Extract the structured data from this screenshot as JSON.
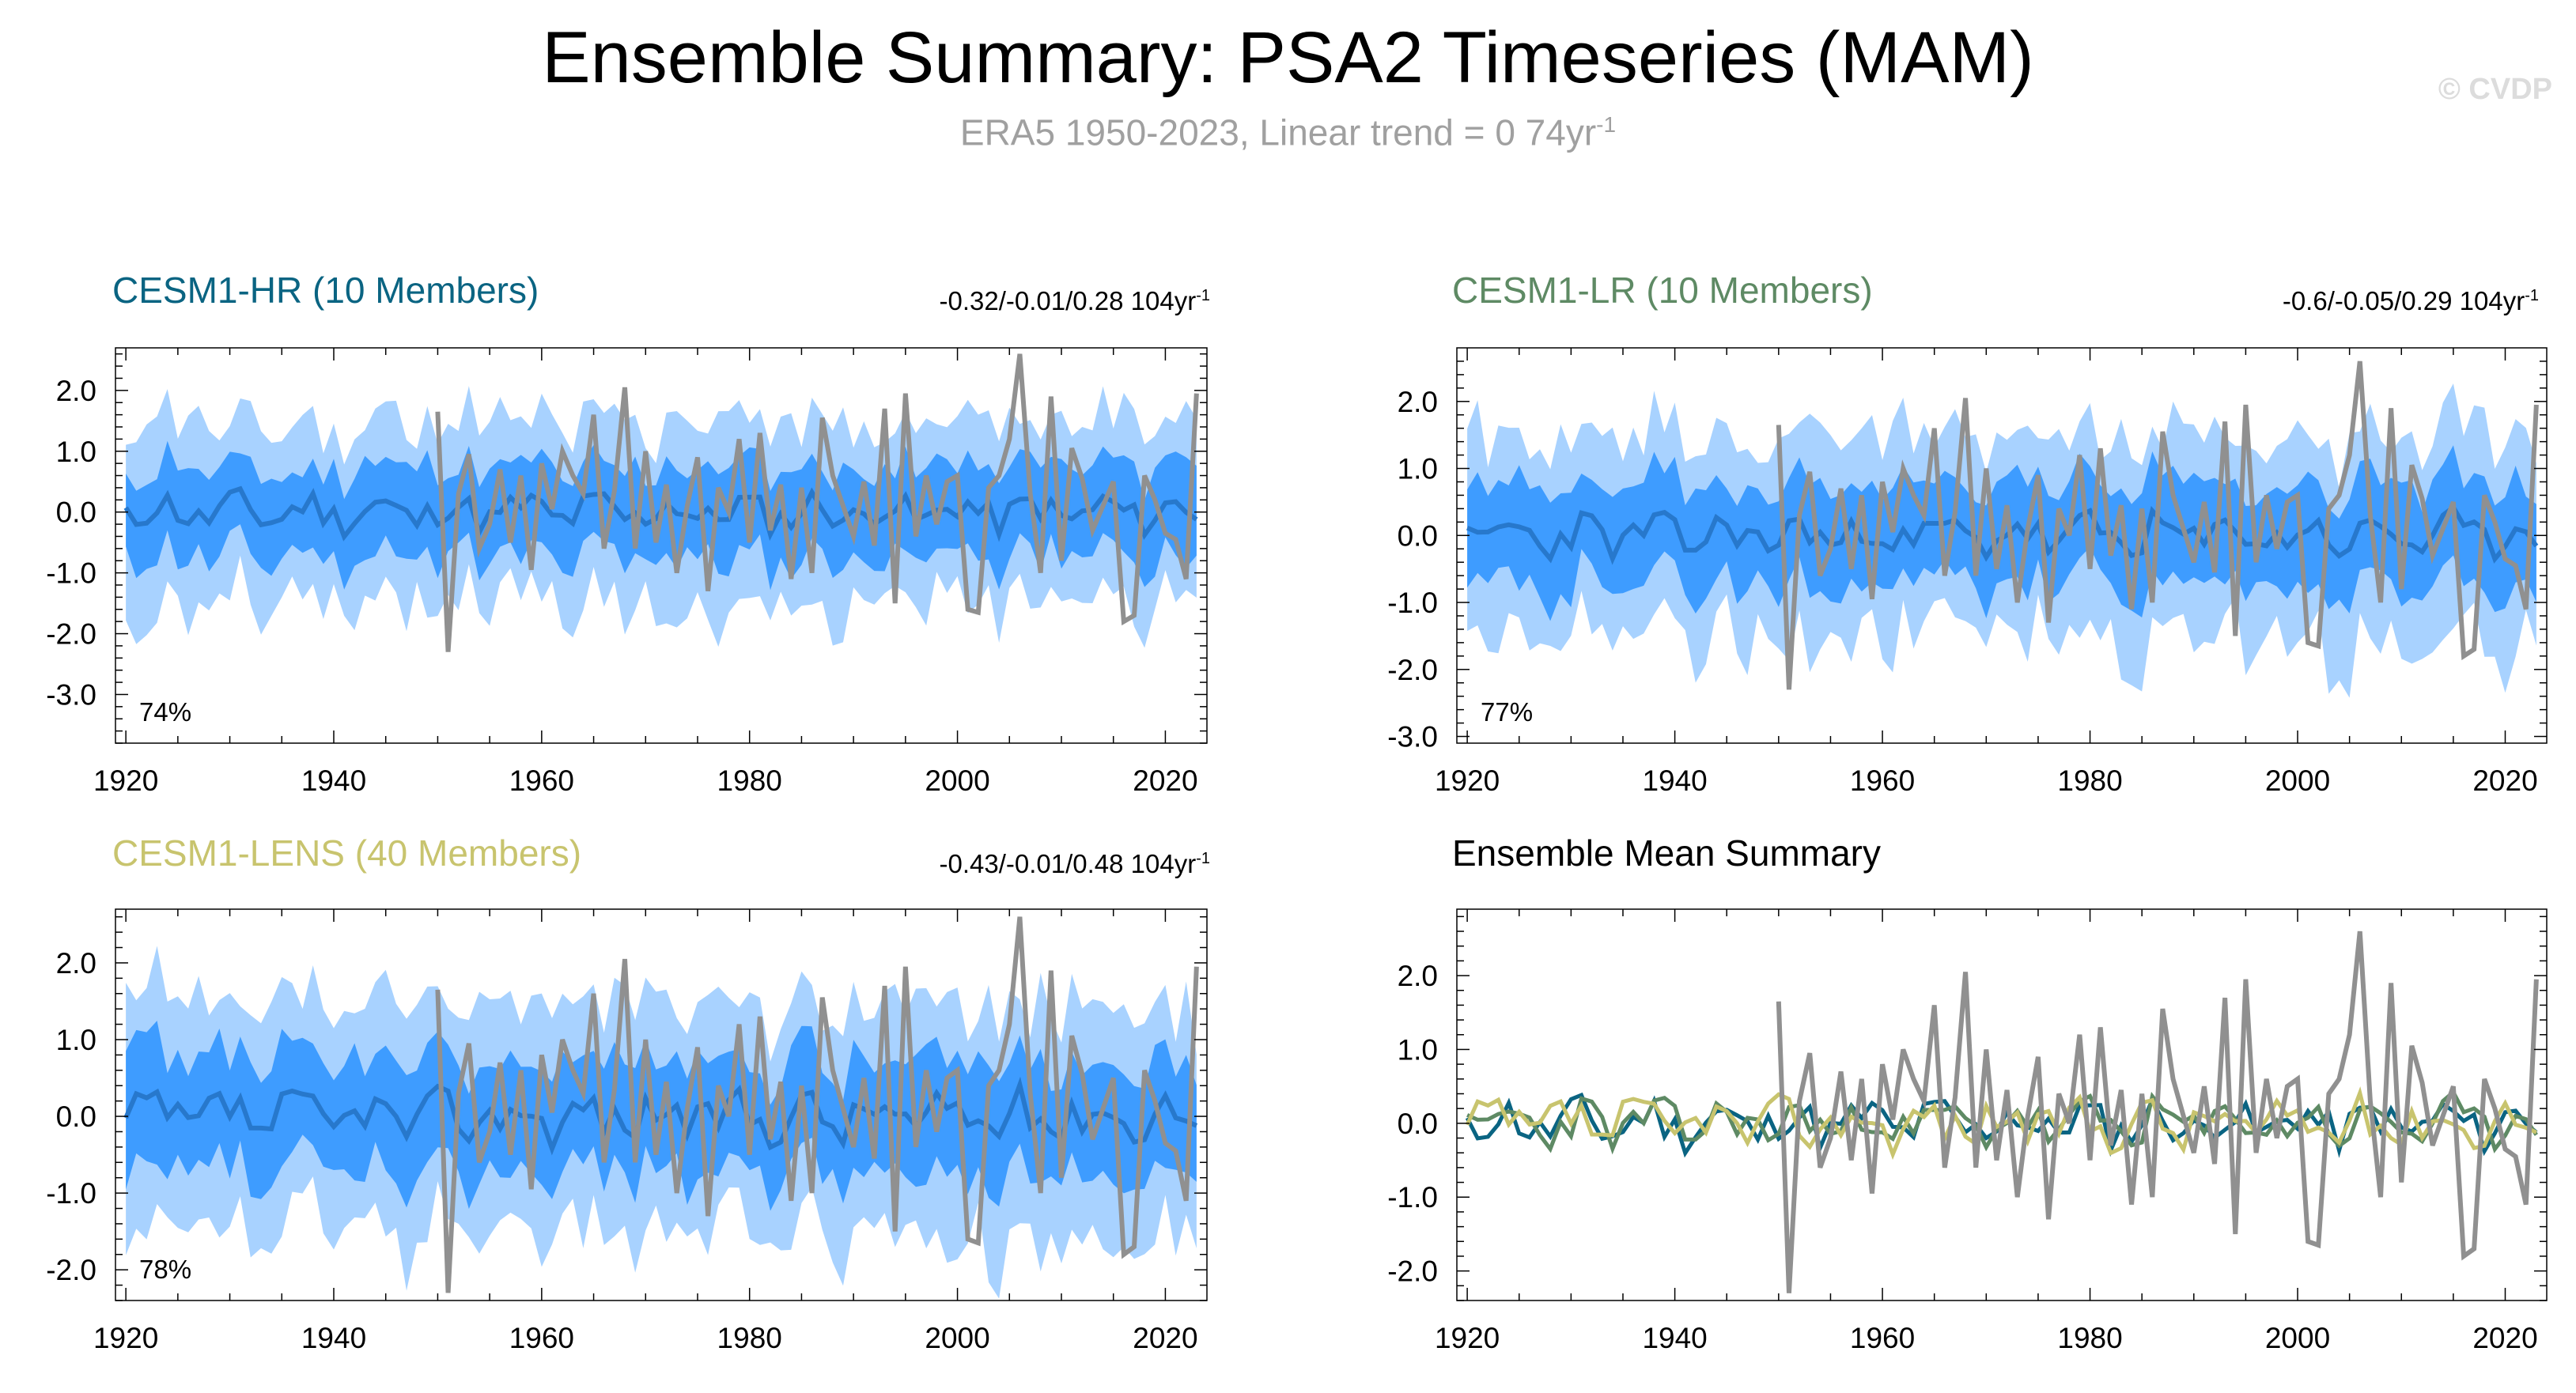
{
  "header": {
    "title": "Ensemble Summary: PSA2 Timeseries (MAM)",
    "subtitle": "ERA5 1950-2023, Linear trend = 0 74yr",
    "subtitle_sup": "-1",
    "watermark": "© CVDP"
  },
  "colors": {
    "outer_band": "#a8d2ff",
    "inner_band": "#3e9cff",
    "ens_mean_line": "#2778cc",
    "obs_line": "#909090",
    "hr": "#0a6482",
    "lr": "#5e8a64",
    "lens": "#c8c46e"
  },
  "chart_data": [
    {
      "id": "hr",
      "type": "area",
      "title": "CESM1-HR (10 Members)",
      "stat": "-0.32/-0.01/0.28 104yr",
      "stat_sup": "-1",
      "percent": "74%",
      "xlim": [
        1919,
        2024
      ],
      "ylim": [
        -3.8,
        2.7
      ],
      "xticks": [
        1920,
        1940,
        1960,
        1980,
        2000,
        2020
      ],
      "yticks": [
        2,
        1,
        0,
        -1,
        -2,
        -3
      ],
      "ytick_labels": [
        "2.0",
        "1.0",
        "0.0",
        "-1.0",
        "-2.0",
        "-3.0"
      ],
      "spread": 1.0,
      "seed": 11,
      "x_start": 1920,
      "x_end": 2023
    },
    {
      "id": "lr",
      "type": "area",
      "title": "CESM1-LR (10 Members)",
      "stat": "-0.6/-0.05/0.29 104yr",
      "stat_sup": "-1",
      "percent": "77%",
      "xlim": [
        1919,
        2024
      ],
      "ylim": [
        -3.1,
        2.8
      ],
      "xticks": [
        1920,
        1940,
        1960,
        1980,
        2000,
        2020
      ],
      "yticks": [
        2,
        1,
        0,
        -1,
        -2,
        -3
      ],
      "ytick_labels": [
        "2.0",
        "1.0",
        "0.0",
        "-1.0",
        "-2.0",
        "-3.0"
      ],
      "spread": 1.05,
      "seed": 23,
      "x_start": 1920,
      "x_end": 2023
    },
    {
      "id": "lens",
      "type": "area",
      "title": "CESM1-LENS (40 Members)",
      "stat": "-0.43/-0.01/0.48 104yr",
      "stat_sup": "-1",
      "percent": "78%",
      "xlim": [
        1919,
        2024
      ],
      "ylim": [
        -2.4,
        2.7
      ],
      "xticks": [
        1920,
        1940,
        1960,
        1980,
        2000,
        2020
      ],
      "yticks": [
        2,
        1,
        0,
        -1,
        -2
      ],
      "ytick_labels": [
        "2.0",
        "1.0",
        "0.0",
        "-1.0",
        "-2.0"
      ],
      "spread": 1.0,
      "seed": 37,
      "x_start": 1920,
      "x_end": 2023
    },
    {
      "id": "summary",
      "type": "line",
      "title": "Ensemble Mean Summary",
      "xlim": [
        1919,
        2024
      ],
      "ylim": [
        -2.4,
        2.9
      ],
      "xticks": [
        1920,
        1940,
        1960,
        1980,
        2000,
        2020
      ],
      "yticks": [
        2,
        1,
        0,
        -1,
        -2
      ],
      "ytick_labels": [
        "2.0",
        "1.0",
        "0.0",
        "-1.0",
        "-2.0"
      ],
      "series": [
        {
          "name": "ERA5",
          "color_key": "obs_line"
        },
        {
          "name": "CESM1-HR",
          "color_key": "hr",
          "seed": 11
        },
        {
          "name": "CESM1-LR",
          "color_key": "lr",
          "seed": 23
        },
        {
          "name": "CESM1-LENS",
          "color_key": "lens",
          "seed": 37
        }
      ]
    }
  ],
  "observations": {
    "name": "ERA5",
    "x_start": 1950,
    "values": [
      1.65,
      -2.3,
      0.3,
      0.95,
      -0.6,
      -0.2,
      0.7,
      -0.5,
      0.6,
      -0.95,
      0.8,
      0.05,
      1.0,
      0.6,
      0.3,
      1.6,
      -0.6,
      0.35,
      2.05,
      -0.6,
      1.0,
      -0.5,
      0.45,
      -1.0,
      0.1,
      0.9,
      -1.3,
      0.4,
      0.0,
      1.2,
      -0.5,
      1.3,
      -0.3,
      0.45,
      -1.1,
      0.4,
      -1.0,
      1.55,
      0.6,
      0.1,
      -0.4,
      0.5,
      -0.55,
      1.7,
      -1.5,
      1.95,
      -0.4,
      0.6,
      -0.2,
      0.5,
      0.6,
      -1.6,
      -1.65,
      0.4,
      0.6,
      1.2,
      2.6,
      0.3,
      -1.0,
      1.9,
      -0.8,
      1.05,
      0.55,
      -0.3,
      0.1,
      0.5,
      -1.8,
      -1.7,
      0.6,
      0.2,
      -0.35,
      -0.45,
      -1.1,
      1.95
    ]
  },
  "axis_ticks": {
    "x": [
      "1920",
      "1940",
      "1960",
      "1980",
      "2000",
      "2020"
    ]
  }
}
